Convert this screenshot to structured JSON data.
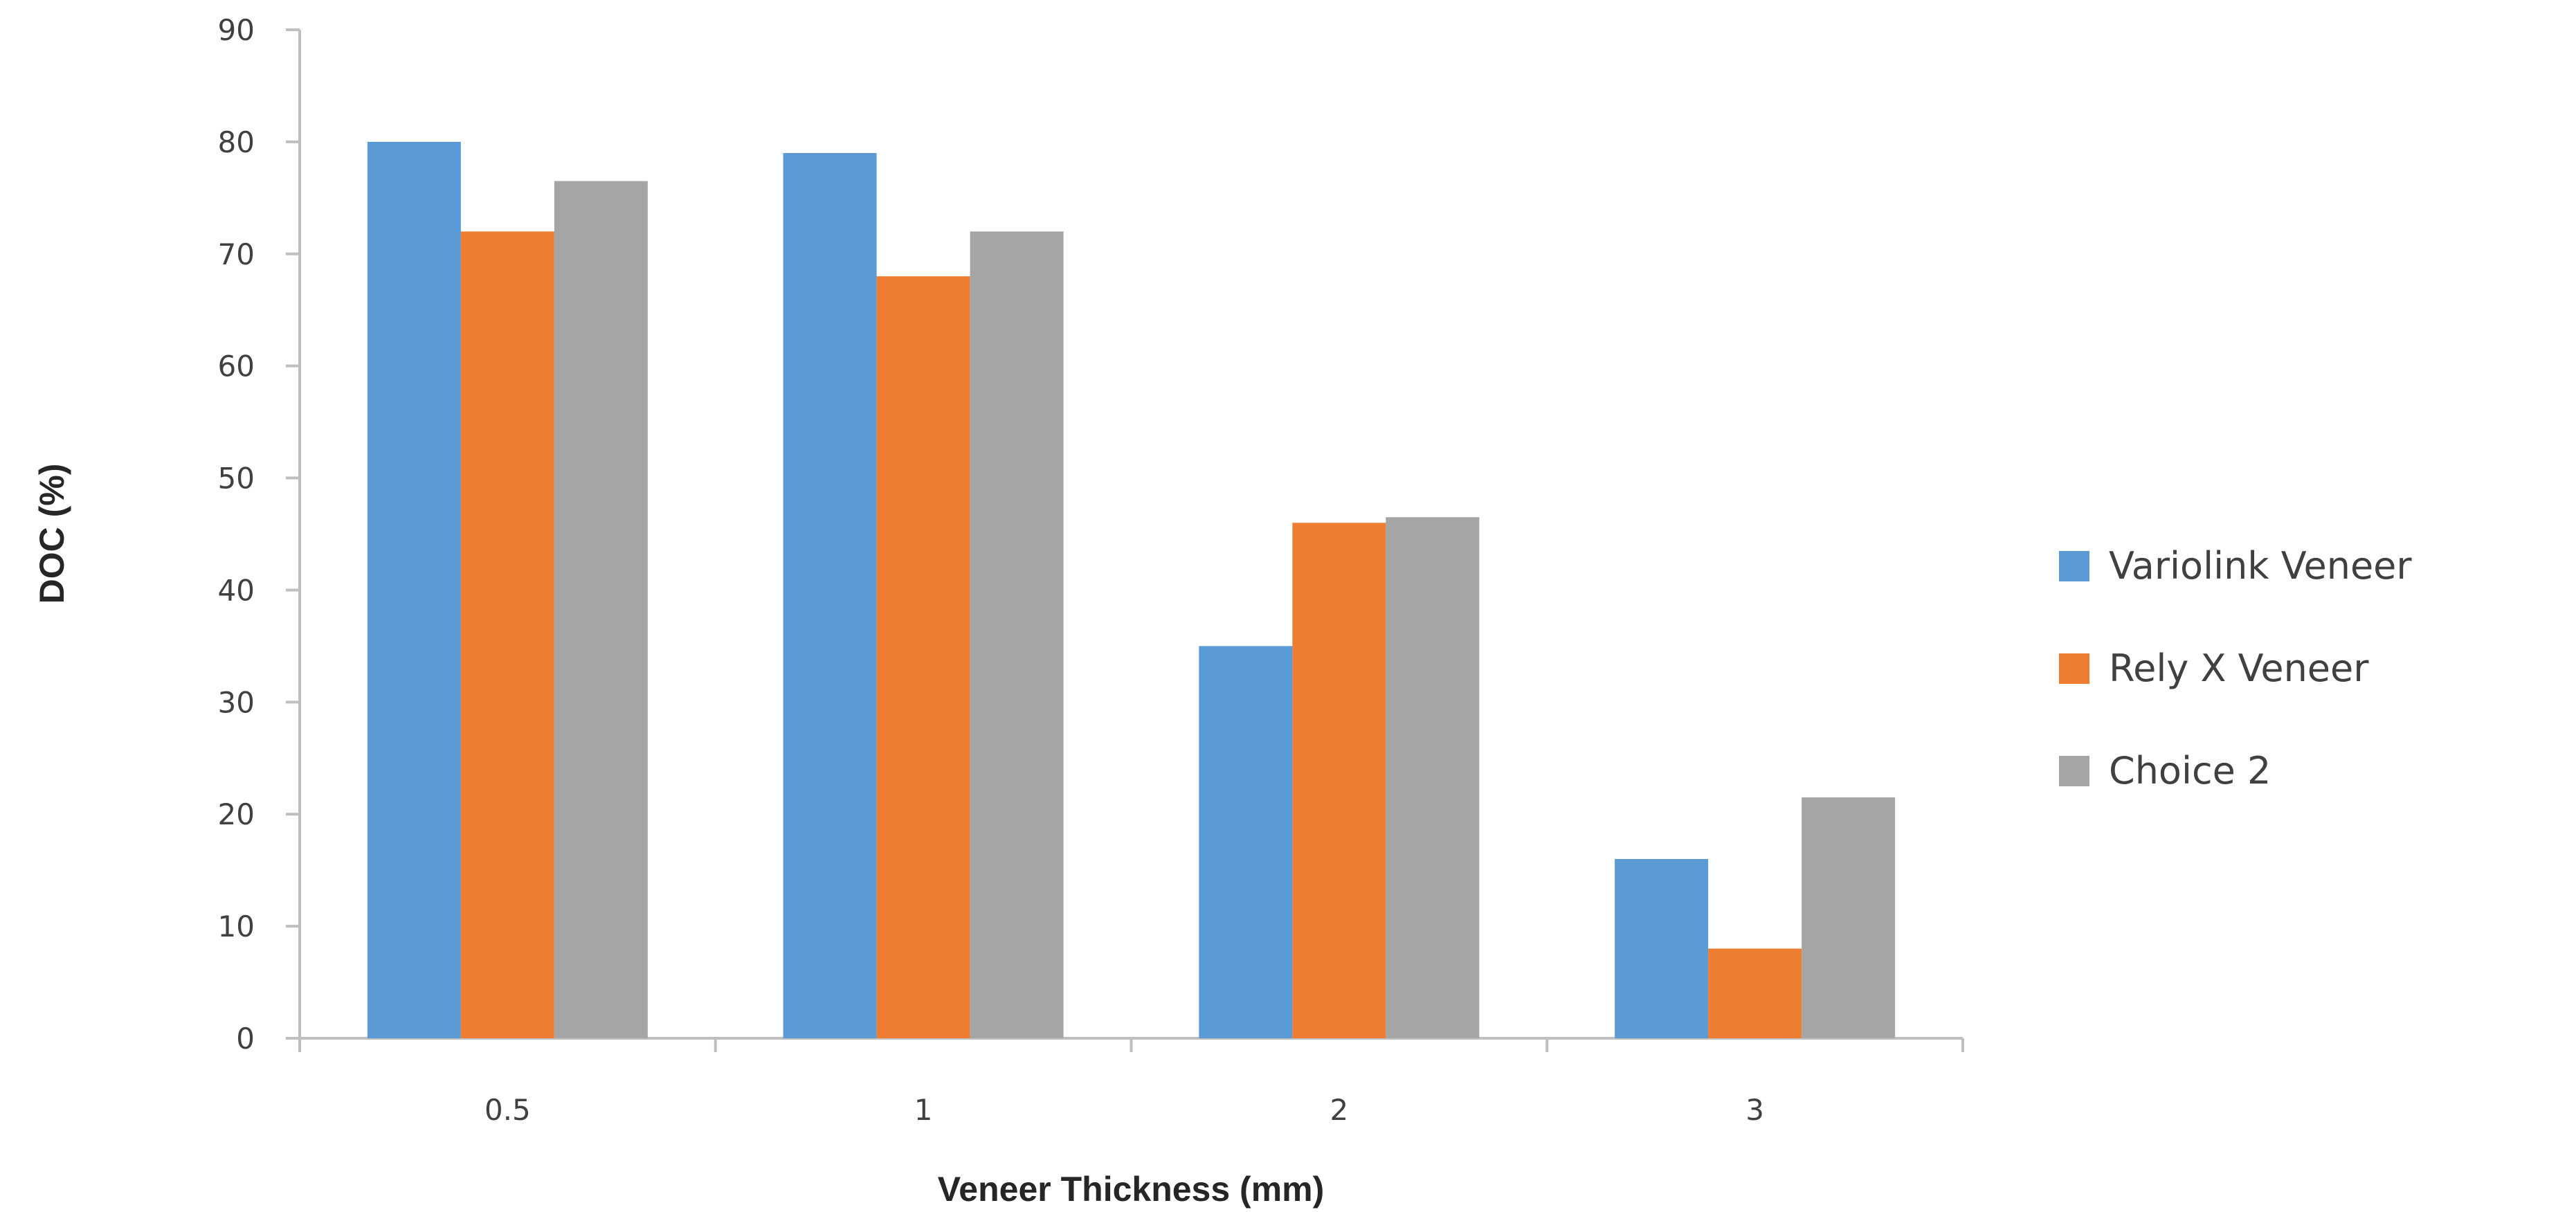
{
  "chart_data": {
    "type": "bar",
    "title": "",
    "xlabel": "Veneer Thickness (mm)",
    "ylabel": "DOC (%)",
    "categories": [
      "0.5",
      "1",
      "2",
      "3"
    ],
    "ylim": [
      0,
      90
    ],
    "yticks": [
      "0",
      "10",
      "20",
      "30",
      "40",
      "50",
      "60",
      "70",
      "80",
      "90"
    ],
    "grid": false,
    "legend_position": "right",
    "series": [
      {
        "name": "Variolink Veneer",
        "color": "#5b9bd5",
        "values": [
          80,
          79,
          35,
          16
        ]
      },
      {
        "name": "Rely X Veneer",
        "color": "#ed7d31",
        "values": [
          72,
          68,
          46,
          8
        ]
      },
      {
        "name": "Choice 2",
        "color": "#a5a5a5",
        "values": [
          76.5,
          72,
          46.5,
          21.5
        ]
      }
    ]
  }
}
